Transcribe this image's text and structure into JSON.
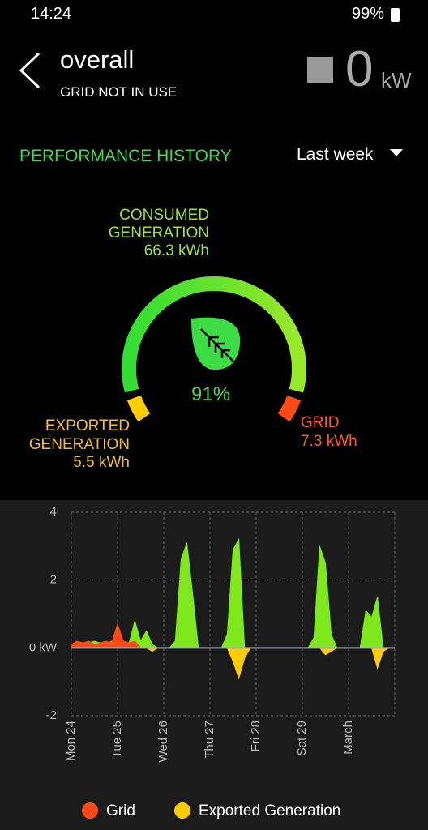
{
  "status_bar": {
    "time": "14:24",
    "battery": "99%"
  },
  "header": {
    "title": "overall",
    "subtitle": "GRID NOT IN USE",
    "power": "0",
    "unit": "kW"
  },
  "section": {
    "title": "PERFORMANCE HISTORY",
    "period": "Last week"
  },
  "gauge": {
    "consumed": {
      "lines": [
        "CONSUMED",
        "GENERATION"
      ],
      "amount": "66.3 kWh"
    },
    "percent": "91%",
    "exported": {
      "lines": [
        "EXPORTED",
        "GENERATION"
      ],
      "amount": "5.5 kWh"
    },
    "grid": {
      "lines": [
        "GRID"
      ],
      "amount": "7.3 kWh"
    }
  },
  "chart_data": {
    "type": "area",
    "x": [
      0,
      0.125,
      0.25,
      0.375,
      0.5,
      0.625,
      0.75,
      0.875,
      1,
      1.125,
      1.25,
      1.375,
      1.5,
      1.625,
      1.75,
      1.875,
      2,
      2.125,
      2.25,
      2.375,
      2.5,
      2.625,
      2.75,
      2.875,
      3,
      3.125,
      3.25,
      3.375,
      3.5,
      3.625,
      3.75,
      3.875,
      4,
      4.125,
      4.25,
      4.375,
      4.5,
      4.625,
      4.75,
      4.875,
      5,
      5.125,
      5.25,
      5.375,
      5.5,
      5.625,
      5.75,
      5.875,
      6,
      6.125,
      6.25,
      6.375,
      6.5,
      6.625,
      6.75,
      6.875,
      7
    ],
    "series": [
      {
        "color": "#7ee81c",
        "values": [
          0.1,
          0.15,
          0.1,
          0.15,
          0.2,
          0.15,
          0.1,
          0.2,
          0.15,
          0.2,
          0.15,
          0.8,
          0.2,
          0.5,
          0.1,
          0,
          0,
          0,
          0.2,
          2.6,
          3.1,
          1.6,
          0,
          0,
          0,
          0,
          0,
          0.4,
          2.9,
          3.2,
          0,
          0,
          0,
          0,
          0,
          0,
          0,
          0,
          0,
          0,
          0,
          0,
          0.3,
          3.0,
          2.5,
          0.4,
          0,
          0,
          0,
          0,
          0,
          1.1,
          0.9,
          1.5,
          0,
          0,
          0
        ]
      },
      {
        "name": "Grid",
        "color": "#ff4a17",
        "values": [
          0.1,
          0.2,
          0.15,
          0.2,
          0.1,
          0.15,
          0.2,
          0.15,
          0.7,
          0.2,
          0.15,
          0.2,
          0,
          0,
          0,
          0,
          0,
          0,
          0,
          0,
          0,
          0,
          0,
          0,
          0,
          0,
          0,
          0,
          0,
          0,
          0,
          0,
          0,
          0,
          0,
          0,
          0,
          0,
          0,
          0,
          0,
          0,
          0,
          0,
          0,
          0,
          0,
          0,
          0,
          0,
          0,
          0,
          0,
          0,
          0,
          0,
          0
        ]
      },
      {
        "name": "Exported Generation",
        "color": "#ffcc00",
        "values": [
          0,
          0,
          0,
          0,
          0,
          0,
          0,
          0,
          0,
          0,
          0,
          0,
          0,
          0,
          -0.1,
          0,
          0,
          0,
          0,
          0,
          0,
          0,
          0,
          0,
          0,
          0,
          0,
          0,
          -0.4,
          -0.9,
          -0.3,
          0,
          0,
          0,
          0,
          0,
          0,
          0,
          0,
          0,
          0,
          0,
          0,
          0,
          -0.2,
          -0.1,
          0,
          0,
          0,
          0,
          0,
          0,
          0,
          -0.6,
          -0.1,
          0,
          0
        ]
      }
    ],
    "xlim": [
      0,
      7
    ],
    "xticks": [
      {
        "value": 0,
        "label": "Mon 24"
      },
      {
        "value": 1,
        "label": "Tue 25"
      },
      {
        "value": 2,
        "label": "Wed 26"
      },
      {
        "value": 3,
        "label": "Thu 27"
      },
      {
        "value": 4,
        "label": "Fri 28"
      },
      {
        "value": 5,
        "label": "Sat 29"
      },
      {
        "value": 6,
        "label": "March"
      }
    ],
    "ylim": [
      -2,
      4
    ],
    "yticks": [
      -2,
      {
        "value": 0,
        "label": "0 kW"
      },
      2,
      4
    ],
    "grid": true
  }
}
